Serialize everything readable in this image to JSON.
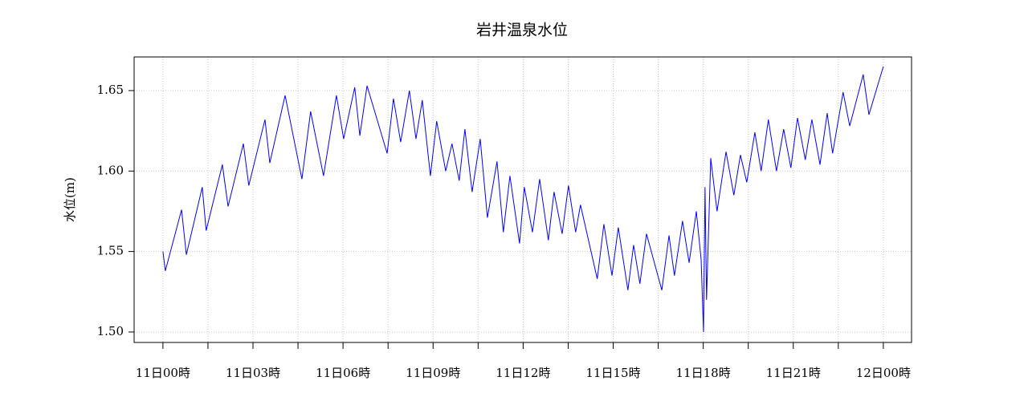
{
  "chart_data": {
    "type": "line",
    "title": "岩井温泉水位",
    "y_label": "水位(m)",
    "x": [
      0,
      0.08,
      0.62,
      0.78,
      1.31,
      1.44,
      1.98,
      2.17,
      2.68,
      2.86,
      3.4,
      3.56,
      4.07,
      4.63,
      4.92,
      5.35,
      5.78,
      6.02,
      6.39,
      6.56,
      6.8,
      7.47,
      7.68,
      7.92,
      8.21,
      8.43,
      8.64,
      8.91,
      9.12,
      9.42,
      9.63,
      9.87,
      10.06,
      10.3,
      10.57,
      10.81,
      11.13,
      11.34,
      11.56,
      11.88,
      12.04,
      12.31,
      12.55,
      12.84,
      13.03,
      13.3,
      13.51,
      13.75,
      13.91,
      14.47,
      14.69,
      14.96,
      15.17,
      15.49,
      15.68,
      15.89,
      16.11,
      16.62,
      16.86,
      17.04,
      17.31,
      17.53,
      17.77,
      17.93,
      18.01,
      18.06,
      18.11,
      18.25,
      18.46,
      18.76,
      19.02,
      19.24,
      19.45,
      19.72,
      19.93,
      20.17,
      20.44,
      20.68,
      20.92,
      21.14,
      21.4,
      21.62,
      21.89,
      22.13,
      22.31,
      22.66,
      22.88,
      23.33,
      23.52,
      24.0
    ],
    "series": [
      {
        "name": "水位",
        "color": "#0000ff",
        "values": [
          1.55,
          1.538,
          1.576,
          1.548,
          1.59,
          1.563,
          1.604,
          1.578,
          1.617,
          1.591,
          1.632,
          1.605,
          1.647,
          1.595,
          1.637,
          1.597,
          1.647,
          1.62,
          1.652,
          1.622,
          1.653,
          1.611,
          1.645,
          1.618,
          1.65,
          1.62,
          1.644,
          1.597,
          1.631,
          1.6,
          1.617,
          1.594,
          1.626,
          1.587,
          1.62,
          1.571,
          1.606,
          1.562,
          1.597,
          1.555,
          1.59,
          1.562,
          1.595,
          1.557,
          1.587,
          1.561,
          1.591,
          1.562,
          1.579,
          1.533,
          1.567,
          1.535,
          1.565,
          1.526,
          1.554,
          1.53,
          1.561,
          1.526,
          1.56,
          1.535,
          1.569,
          1.543,
          1.575,
          1.545,
          1.5,
          1.59,
          1.52,
          1.608,
          1.575,
          1.612,
          1.585,
          1.61,
          1.593,
          1.624,
          1.6,
          1.632,
          1.6,
          1.626,
          1.602,
          1.633,
          1.607,
          1.632,
          1.604,
          1.636,
          1.611,
          1.649,
          1.628,
          1.66,
          1.635,
          1.665
        ]
      }
    ],
    "xlim": [
      -0.96,
      24.94
    ],
    "xticks": [
      {
        "value": 0,
        "label": "11日00時"
      },
      {
        "value": 3,
        "label": "11日03時"
      },
      {
        "value": 6,
        "label": "11日06時"
      },
      {
        "value": 9,
        "label": "11日09時"
      },
      {
        "value": 12,
        "label": "11日12時"
      },
      {
        "value": 15,
        "label": "11日15時"
      },
      {
        "value": 18,
        "label": "11日18時"
      },
      {
        "value": 21,
        "label": "11日21時"
      },
      {
        "value": 24,
        "label": "12日00時"
      }
    ],
    "xminorticks": [
      1.5,
      4.5,
      7.5,
      10.5,
      13.5,
      16.5,
      19.5,
      22.5
    ],
    "ylim": [
      1.4935,
      1.6709
    ],
    "yticks": [
      {
        "value": 1.5,
        "label": "1.50"
      },
      {
        "value": 1.55,
        "label": "1.55"
      },
      {
        "value": 1.6,
        "label": "1.60"
      },
      {
        "value": 1.65,
        "label": "1.65"
      }
    ],
    "grid": true
  }
}
